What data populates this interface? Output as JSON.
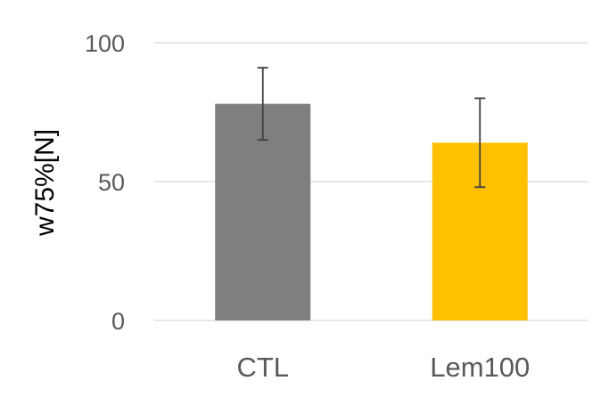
{
  "chart_data": {
    "type": "bar",
    "categories": [
      "CTL",
      "Lem100"
    ],
    "values": [
      78,
      64
    ],
    "error": [
      13,
      16
    ],
    "colors": [
      "#7f7f7f",
      "#ffc000"
    ],
    "title": "",
    "xlabel": "",
    "ylabel": "w75%[N]",
    "ylim": [
      0,
      100
    ],
    "yticks": [
      0,
      50,
      100
    ],
    "ytick_labels": [
      "0",
      "50",
      "100"
    ],
    "grid": true,
    "gridline_color": "#d9d9d9",
    "legend": "none"
  }
}
